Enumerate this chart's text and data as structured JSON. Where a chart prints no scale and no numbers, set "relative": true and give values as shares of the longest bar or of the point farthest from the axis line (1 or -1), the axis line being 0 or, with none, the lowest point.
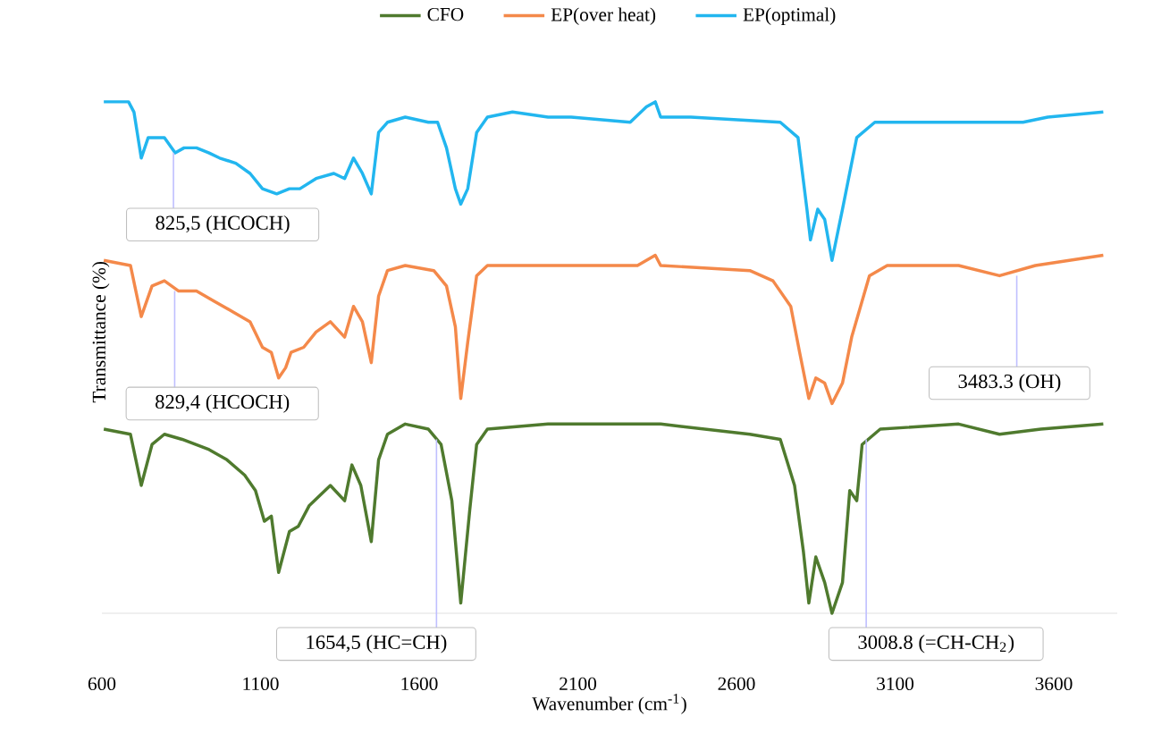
{
  "chart_data": {
    "type": "line",
    "relative": true,
    "xlabel": "Wavenumber (cm$^{-1}$)",
    "ylabel": "Transmittance (%)",
    "xlim": [
      600,
      3800
    ],
    "xticks": [
      600,
      1100,
      1600,
      2100,
      2600,
      3100,
      3600
    ],
    "legend": "top",
    "grid": false,
    "marker": "none",
    "line_style": "solid",
    "series": [
      {
        "name": "CFO",
        "color": "#4f7a2e",
        "x": [
          606,
          690,
          724,
          758,
          797,
          853,
          938,
          994,
          1050,
          1084,
          1112,
          1134,
          1157,
          1191,
          1219,
          1253,
          1320,
          1365,
          1388,
          1416,
          1449,
          1472,
          1500,
          1556,
          1629,
          1669,
          1703,
          1731,
          1759,
          1781,
          1815,
          2006,
          2079,
          2361,
          2642,
          2738,
          2783,
          2811,
          2828,
          2850,
          2878,
          2901,
          2934,
          2957,
          2979,
          2996,
          3053,
          3300,
          3429,
          3559,
          3756
        ],
        "values": [
          0.36,
          0.35,
          0.25,
          0.33,
          0.35,
          0.34,
          0.32,
          0.3,
          0.27,
          0.24,
          0.18,
          0.19,
          0.08,
          0.16,
          0.17,
          0.21,
          0.25,
          0.22,
          0.29,
          0.25,
          0.14,
          0.3,
          0.35,
          0.37,
          0.36,
          0.33,
          0.22,
          0.02,
          0.2,
          0.33,
          0.36,
          0.37,
          0.37,
          0.37,
          0.35,
          0.34,
          0.25,
          0.12,
          0.02,
          0.11,
          0.06,
          0.0,
          0.06,
          0.24,
          0.22,
          0.33,
          0.36,
          0.37,
          0.35,
          0.36,
          0.37
        ]
      },
      {
        "name": "EP(over heat)",
        "color": "#f4894a",
        "x": [
          606,
          690,
          724,
          758,
          797,
          842,
          898,
          954,
          1011,
          1067,
          1106,
          1134,
          1157,
          1179,
          1196,
          1236,
          1275,
          1320,
          1365,
          1393,
          1421,
          1449,
          1472,
          1500,
          1556,
          1646,
          1686,
          1714,
          1731,
          1753,
          1781,
          1815,
          2006,
          2079,
          2288,
          2344,
          2361,
          2642,
          2715,
          2771,
          2799,
          2828,
          2850,
          2878,
          2901,
          2934,
          2963,
          2991,
          3019,
          3075,
          3300,
          3429,
          3542,
          3756
        ],
        "values": [
          0.69,
          0.68,
          0.58,
          0.64,
          0.65,
          0.63,
          0.63,
          0.61,
          0.59,
          0.57,
          0.52,
          0.51,
          0.46,
          0.48,
          0.51,
          0.52,
          0.55,
          0.57,
          0.54,
          0.6,
          0.57,
          0.49,
          0.62,
          0.67,
          0.68,
          0.67,
          0.64,
          0.56,
          0.42,
          0.53,
          0.66,
          0.68,
          0.68,
          0.68,
          0.68,
          0.7,
          0.68,
          0.67,
          0.65,
          0.6,
          0.51,
          0.42,
          0.46,
          0.45,
          0.41,
          0.45,
          0.54,
          0.6,
          0.66,
          0.68,
          0.68,
          0.66,
          0.68,
          0.7
        ]
      },
      {
        "name": "EP(optimal)",
        "color": "#22b6ef",
        "x": [
          606,
          684,
          701,
          724,
          746,
          769,
          797,
          831,
          859,
          898,
          938,
          971,
          1022,
          1067,
          1106,
          1151,
          1191,
          1224,
          1275,
          1331,
          1365,
          1393,
          1421,
          1449,
          1472,
          1500,
          1556,
          1629,
          1658,
          1686,
          1714,
          1731,
          1753,
          1781,
          1815,
          1894,
          2006,
          2079,
          2265,
          2316,
          2344,
          2361,
          2456,
          2738,
          2794,
          2822,
          2833,
          2856,
          2878,
          2901,
          2934,
          2979,
          3036,
          3204,
          3390,
          3503,
          3581,
          3756
        ],
        "values": [
          1.0,
          1.0,
          0.98,
          0.89,
          0.93,
          0.93,
          0.93,
          0.9,
          0.91,
          0.91,
          0.9,
          0.89,
          0.88,
          0.86,
          0.83,
          0.82,
          0.83,
          0.83,
          0.85,
          0.86,
          0.85,
          0.89,
          0.86,
          0.82,
          0.94,
          0.96,
          0.97,
          0.96,
          0.96,
          0.91,
          0.83,
          0.8,
          0.83,
          0.94,
          0.97,
          0.98,
          0.97,
          0.97,
          0.96,
          0.99,
          1.0,
          0.97,
          0.97,
          0.96,
          0.93,
          0.79,
          0.73,
          0.79,
          0.77,
          0.69,
          0.79,
          0.93,
          0.96,
          0.96,
          0.96,
          0.96,
          0.97,
          0.98
        ]
      }
    ],
    "annotations": [
      {
        "text": "825,5 (HCOCH)",
        "x": 825.5,
        "y": 0.9
      },
      {
        "text": "829,4 (HCOCH)",
        "x": 829.4,
        "y": 0.63
      },
      {
        "text": "1654,5 (HC=CH)",
        "x": 1654.5,
        "y": 0.34
      },
      {
        "text": "3008.8 (=CH-CH$_{2}$)",
        "x": 3008.8,
        "y": 0.34
      },
      {
        "text": "3483.3 (OH)",
        "x": 3483.3,
        "y": 0.66
      }
    ]
  }
}
